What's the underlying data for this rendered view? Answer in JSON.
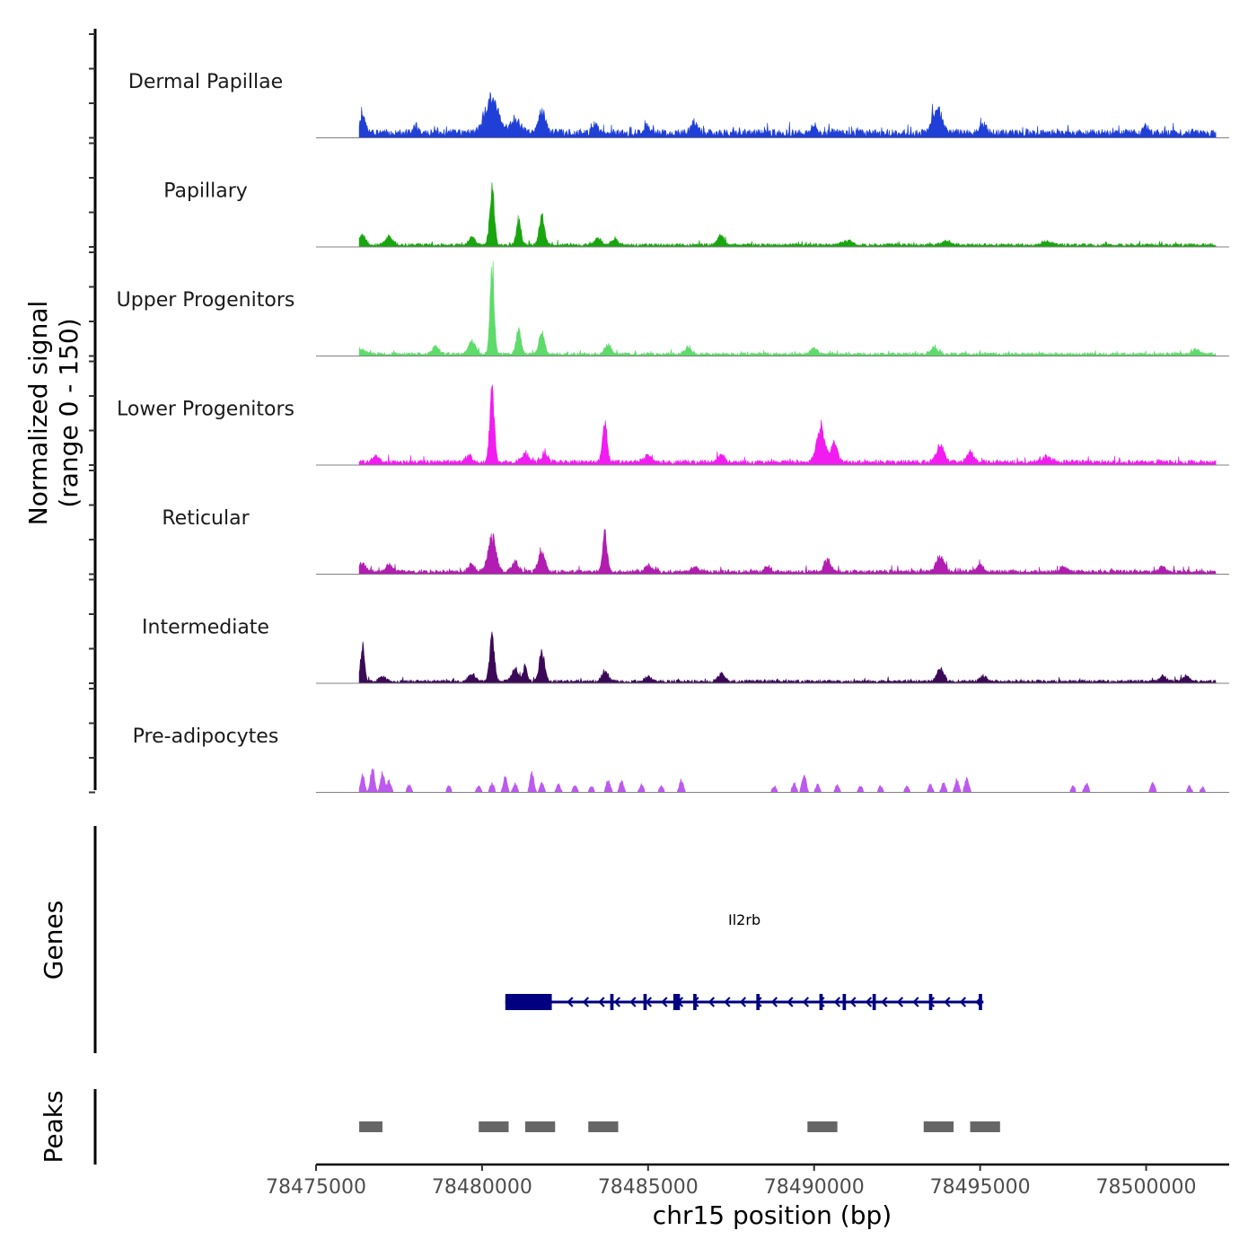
{
  "chart_data": {
    "type": "area",
    "title": "",
    "xlabel": "chr15 position (bp)",
    "ylabel_signal": "Normalized signal\n(range 0 - 150)",
    "ylabel_lines": [
      "Normalized signal",
      "(range 0 - 150)"
    ],
    "ylim": [
      0,
      150
    ],
    "xlim": [
      78475000,
      78502500
    ],
    "x_ticks": [
      78475000,
      78480000,
      78485000,
      78490000,
      78495000,
      78500000
    ],
    "x_tick_labels": [
      "78475000",
      "78480000",
      "78485000",
      "78490000",
      "78495000",
      "78500000"
    ],
    "region": {
      "start": 78476300,
      "end": 78502100
    },
    "series": [
      {
        "name": "Dermal Papillae",
        "color": "#1F3FD6",
        "baseline": 10,
        "peaks": [
          [
            78476400,
            25,
            90
          ],
          [
            78478000,
            12,
            60
          ],
          [
            78480300,
            55,
            200
          ],
          [
            78481000,
            20,
            150
          ],
          [
            78481800,
            35,
            100
          ],
          [
            78483400,
            12,
            80
          ],
          [
            78485000,
            10,
            120
          ],
          [
            78486400,
            15,
            100
          ],
          [
            78490000,
            12,
            80
          ],
          [
            78493700,
            37,
            140
          ],
          [
            78495100,
            15,
            80
          ],
          [
            78500000,
            10,
            80
          ]
        ]
      },
      {
        "name": "Papillary",
        "color": "#19A50F",
        "baseline": 4,
        "peaks": [
          [
            78476400,
            15,
            100
          ],
          [
            78477200,
            12,
            120
          ],
          [
            78479700,
            12,
            100
          ],
          [
            78480300,
            88,
            70
          ],
          [
            78481100,
            40,
            70
          ],
          [
            78481800,
            45,
            80
          ],
          [
            78483500,
            10,
            100
          ],
          [
            78484000,
            10,
            100
          ],
          [
            78487200,
            15,
            100
          ],
          [
            78491000,
            6,
            150
          ],
          [
            78494000,
            6,
            150
          ],
          [
            78497000,
            6,
            150
          ]
        ]
      },
      {
        "name": "Upper Progenitors",
        "color": "#5EDB6B",
        "baseline": 4,
        "peaks": [
          [
            78476400,
            8,
            100
          ],
          [
            78478600,
            12,
            100
          ],
          [
            78479700,
            20,
            100
          ],
          [
            78480300,
            145,
            60
          ],
          [
            78481100,
            40,
            70
          ],
          [
            78481800,
            35,
            80
          ],
          [
            78483800,
            15,
            100
          ],
          [
            78486200,
            10,
            100
          ],
          [
            78490000,
            8,
            120
          ],
          [
            78493600,
            10,
            100
          ],
          [
            78501500,
            8,
            100
          ]
        ]
      },
      {
        "name": "Lower Progenitors",
        "color": "#F11CF0",
        "baseline": 6,
        "peaks": [
          [
            78476800,
            10,
            100
          ],
          [
            78479600,
            10,
            100
          ],
          [
            78480300,
            110,
            70
          ],
          [
            78481300,
            15,
            100
          ],
          [
            78481900,
            12,
            100
          ],
          [
            78483700,
            60,
            70
          ],
          [
            78485000,
            10,
            150
          ],
          [
            78487200,
            12,
            100
          ],
          [
            78490200,
            55,
            120
          ],
          [
            78490600,
            30,
            100
          ],
          [
            78493800,
            25,
            120
          ],
          [
            78494700,
            15,
            100
          ],
          [
            78497000,
            8,
            150
          ]
        ]
      },
      {
        "name": "Reticular",
        "color": "#B11DB0",
        "baseline": 5,
        "peaks": [
          [
            78476400,
            15,
            100
          ],
          [
            78477200,
            10,
            100
          ],
          [
            78479700,
            12,
            100
          ],
          [
            78480300,
            55,
            120
          ],
          [
            78481000,
            15,
            100
          ],
          [
            78481800,
            30,
            100
          ],
          [
            78483700,
            60,
            70
          ],
          [
            78485000,
            10,
            100
          ],
          [
            78486400,
            8,
            100
          ],
          [
            78488600,
            8,
            100
          ],
          [
            78490400,
            20,
            100
          ],
          [
            78493800,
            25,
            120
          ],
          [
            78495000,
            10,
            100
          ],
          [
            78497500,
            8,
            100
          ],
          [
            78500500,
            8,
            100
          ]
        ]
      },
      {
        "name": "Intermediate",
        "color": "#3B0A57",
        "baseline": 4,
        "peaks": [
          [
            78476400,
            55,
            60
          ],
          [
            78477000,
            8,
            100
          ],
          [
            78479700,
            12,
            100
          ],
          [
            78480300,
            75,
            70
          ],
          [
            78481000,
            20,
            100
          ],
          [
            78481300,
            25,
            60
          ],
          [
            78481800,
            50,
            80
          ],
          [
            78483700,
            15,
            100
          ],
          [
            78485000,
            8,
            100
          ],
          [
            78487200,
            12,
            100
          ],
          [
            78493800,
            20,
            100
          ],
          [
            78495100,
            8,
            100
          ],
          [
            78500500,
            8,
            100
          ],
          [
            78501200,
            8,
            100
          ]
        ]
      },
      {
        "name": "Pre-adipocytes",
        "color": "#BC5AF0",
        "baseline": 0,
        "spiky": true,
        "peaks": [
          [
            78476400,
            28,
            60
          ],
          [
            78476700,
            40,
            60
          ],
          [
            78477000,
            30,
            60
          ],
          [
            78477200,
            18,
            60
          ],
          [
            78477800,
            12,
            60
          ],
          [
            78479000,
            10,
            60
          ],
          [
            78479900,
            10,
            60
          ],
          [
            78480300,
            15,
            60
          ],
          [
            78480700,
            25,
            60
          ],
          [
            78481000,
            14,
            60
          ],
          [
            78481500,
            30,
            60
          ],
          [
            78481800,
            15,
            60
          ],
          [
            78482300,
            12,
            60
          ],
          [
            78482800,
            12,
            60
          ],
          [
            78483300,
            10,
            60
          ],
          [
            78483800,
            20,
            60
          ],
          [
            78484200,
            18,
            60
          ],
          [
            78484800,
            12,
            60
          ],
          [
            78485400,
            10,
            60
          ],
          [
            78486000,
            20,
            60
          ],
          [
            78488800,
            10,
            60
          ],
          [
            78489400,
            15,
            60
          ],
          [
            78489700,
            30,
            60
          ],
          [
            78490100,
            12,
            60
          ],
          [
            78490700,
            12,
            60
          ],
          [
            78491400,
            10,
            60
          ],
          [
            78492000,
            10,
            60
          ],
          [
            78492800,
            10,
            60
          ],
          [
            78493500,
            12,
            60
          ],
          [
            78493900,
            15,
            60
          ],
          [
            78494300,
            20,
            60
          ],
          [
            78494600,
            22,
            60
          ],
          [
            78497800,
            10,
            60
          ],
          [
            78498200,
            15,
            60
          ],
          [
            78500200,
            15,
            60
          ],
          [
            78501300,
            10,
            60
          ],
          [
            78501700,
            8,
            60
          ]
        ]
      }
    ],
    "genes": {
      "ylabel": "Genes",
      "color": "#000080",
      "items": [
        {
          "name": "Il2rb",
          "start": 78480700,
          "end": 78495100,
          "strand": "-",
          "cds": [
            [
              78480700,
              78482100
            ]
          ],
          "exons": [
            [
              78483900,
              78484000
            ],
            [
              78484900,
              78485000
            ],
            [
              78485800,
              78486000
            ],
            [
              78486400,
              78486500
            ],
            [
              78488300,
              78488400
            ],
            [
              78490200,
              78490300
            ],
            [
              78490900,
              78491000
            ],
            [
              78491800,
              78491900
            ],
            [
              78493500,
              78493600
            ],
            [
              78495000,
              78495100
            ]
          ]
        }
      ]
    },
    "peaks": {
      "ylabel": "Peaks",
      "color": "#666666",
      "regions": [
        [
          78476300,
          78477000
        ],
        [
          78479900,
          78480800
        ],
        [
          78481300,
          78482200
        ],
        [
          78483200,
          78484100
        ],
        [
          78489800,
          78490700
        ],
        [
          78493300,
          78494200
        ],
        [
          78494700,
          78495600
        ]
      ]
    }
  }
}
